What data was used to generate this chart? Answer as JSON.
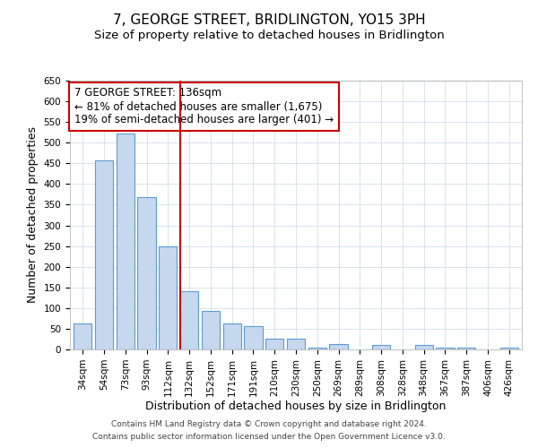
{
  "title": "7, GEORGE STREET, BRIDLINGTON, YO15 3PH",
  "subtitle": "Size of property relative to detached houses in Bridlington",
  "xlabel": "Distribution of detached houses by size in Bridlington",
  "ylabel": "Number of detached properties",
  "categories": [
    "34sqm",
    "54sqm",
    "73sqm",
    "93sqm",
    "112sqm",
    "132sqm",
    "152sqm",
    "171sqm",
    "191sqm",
    "210sqm",
    "230sqm",
    "250sqm",
    "269sqm",
    "289sqm",
    "308sqm",
    "328sqm",
    "348sqm",
    "367sqm",
    "387sqm",
    "406sqm",
    "426sqm"
  ],
  "bar_heights": [
    62,
    457,
    522,
    368,
    250,
    140,
    93,
    62,
    57,
    27,
    27,
    5,
    13,
    0,
    10,
    0,
    10,
    5,
    5,
    0,
    5
  ],
  "bar_color": "#c5d8ed",
  "bar_edge_color": "#5b9bd5",
  "vline_color": "#cc0000",
  "annotation_title": "7 GEORGE STREET: 136sqm",
  "annotation_line1": "← 81% of detached houses are smaller (1,675)",
  "annotation_line2": "19% of semi-detached houses are larger (401) →",
  "annotation_box_color": "#cc0000",
  "ylim": [
    0,
    650
  ],
  "yticks": [
    0,
    50,
    100,
    150,
    200,
    250,
    300,
    350,
    400,
    450,
    500,
    550,
    600,
    650
  ],
  "footer_line1": "Contains HM Land Registry data © Crown copyright and database right 2024.",
  "footer_line2": "Contains public sector information licensed under the Open Government Licence v3.0.",
  "bg_color": "#ffffff",
  "grid_color": "#c8d8e8",
  "title_fontsize": 11,
  "subtitle_fontsize": 9.5,
  "axis_label_fontsize": 9,
  "tick_fontsize": 7.5,
  "annotation_fontsize": 8.5,
  "footer_fontsize": 6.5
}
